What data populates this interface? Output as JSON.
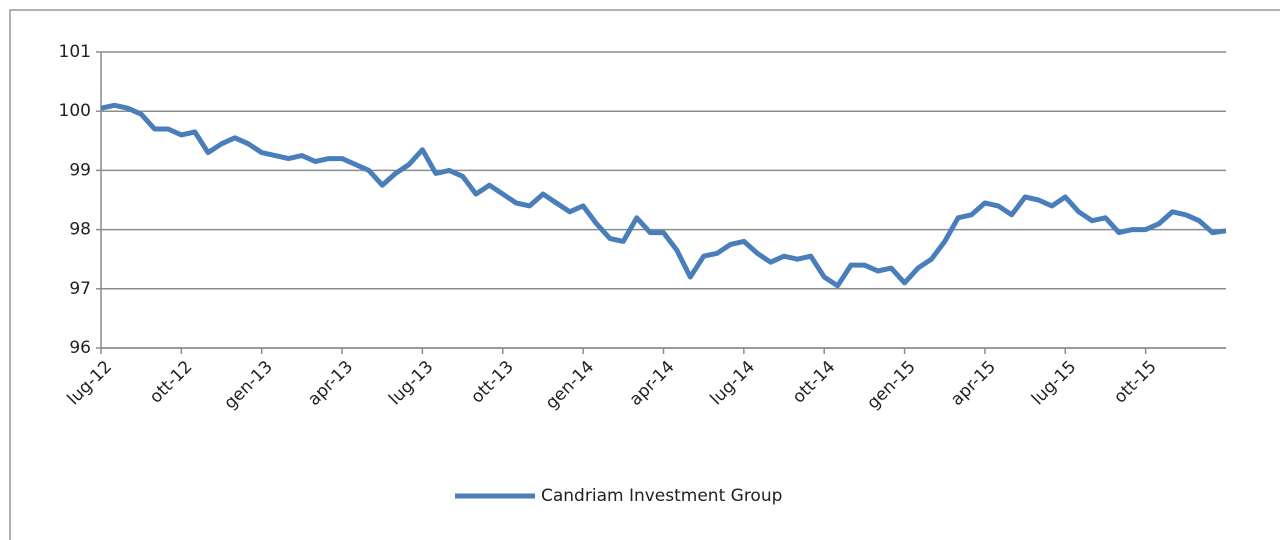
{
  "chart_data": {
    "type": "line",
    "categories": [
      "lug-12",
      null,
      null,
      null,
      null,
      null,
      "ott-12",
      null,
      null,
      null,
      null,
      null,
      "gen-13",
      null,
      null,
      null,
      null,
      null,
      "apr-13",
      null,
      null,
      null,
      null,
      null,
      "lug-13",
      null,
      null,
      null,
      null,
      null,
      "ott-13",
      null,
      null,
      null,
      null,
      null,
      "gen-14",
      null,
      null,
      null,
      null,
      null,
      "apr-14",
      null,
      null,
      null,
      null,
      null,
      "lug-14",
      null,
      null,
      null,
      null,
      null,
      "ott-14",
      null,
      null,
      null,
      null,
      null,
      "gen-15",
      null,
      null,
      null,
      null,
      null,
      "apr-15",
      null,
      null,
      null,
      null,
      null,
      "lug-15",
      null,
      null,
      null,
      null,
      null,
      "ott-15",
      null,
      null,
      null,
      null,
      null,
      null
    ],
    "series": [
      {
        "name": "Candriam Investment Group",
        "color": "#4a7ebb",
        "values": [
          100.05,
          100.1,
          100.05,
          99.95,
          99.7,
          99.7,
          99.6,
          99.65,
          99.3,
          99.45,
          99.55,
          99.45,
          99.3,
          99.25,
          99.2,
          99.25,
          99.15,
          99.2,
          99.2,
          99.1,
          99.0,
          98.75,
          98.95,
          99.1,
          99.35,
          98.95,
          99.0,
          98.9,
          98.6,
          98.75,
          98.6,
          98.45,
          98.4,
          98.6,
          98.45,
          98.3,
          98.4,
          98.1,
          97.85,
          97.8,
          98.2,
          97.95,
          97.95,
          97.65,
          97.2,
          97.55,
          97.6,
          97.75,
          97.8,
          97.6,
          97.45,
          97.55,
          97.5,
          97.55,
          97.2,
          97.05,
          97.4,
          97.4,
          97.3,
          97.35,
          97.1,
          97.35,
          97.5,
          97.8,
          98.2,
          98.25,
          98.45,
          98.4,
          98.25,
          98.55,
          98.5,
          98.4,
          98.55,
          98.3,
          98.15,
          98.2,
          97.95,
          98.0,
          98.0,
          98.1,
          98.3,
          98.25,
          98.15,
          97.95,
          97.98
        ]
      }
    ],
    "ylim": [
      96,
      101
    ],
    "yticks": [
      96,
      97,
      98,
      99,
      100,
      101
    ],
    "grid": true,
    "legend": "bottom"
  }
}
